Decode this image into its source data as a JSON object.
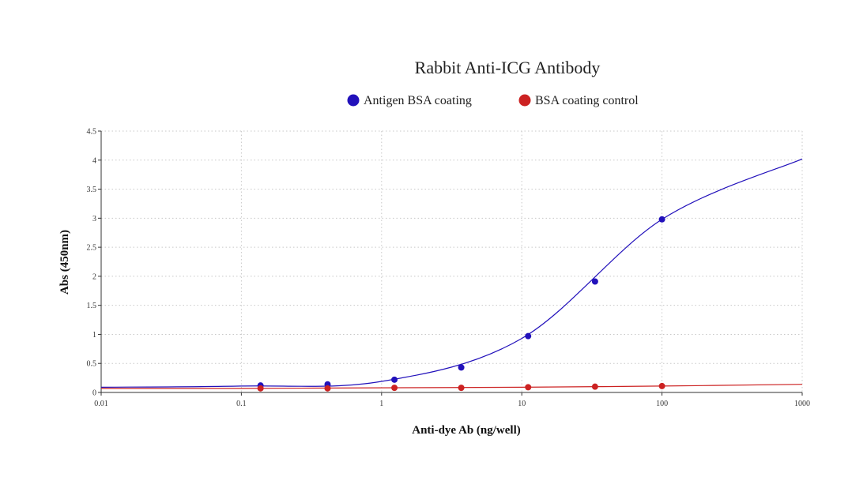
{
  "chart_data": {
    "type": "scatter",
    "title": "Rabbit Anti-ICG Antibody",
    "xlabel": "Anti-dye Ab (ng/well)",
    "ylabel": "Abs (450nm)",
    "x_scale": "log",
    "xlim": [
      0.01,
      1000
    ],
    "ylim": [
      0,
      4.5
    ],
    "x_ticks": [
      0.01,
      0.1,
      1,
      10,
      100,
      1000
    ],
    "x_tick_labels": [
      "0.01",
      "0.1",
      "1",
      "10",
      "100",
      "1000"
    ],
    "y_ticks": [
      0,
      0.5,
      1,
      1.5,
      2,
      2.5,
      3,
      3.5,
      4,
      4.5
    ],
    "y_tick_labels": [
      "0",
      "0.5",
      "1",
      "1.5",
      "2",
      "2.5",
      "3",
      "3.5",
      "4",
      "4.5"
    ],
    "grid": true,
    "legend_position": "top-center",
    "series": [
      {
        "name": "Antigen BSA coating",
        "color": "#2211bb",
        "x": [
          0.137,
          0.412,
          1.235,
          3.7,
          11.1,
          33.3,
          100
        ],
        "y": [
          0.12,
          0.14,
          0.22,
          0.43,
          0.97,
          1.91,
          2.98
        ],
        "fit_curve": [
          [
            0.01,
            0.09
          ],
          [
            0.1,
            0.11
          ],
          [
            1,
            0.19
          ],
          [
            10,
            0.93
          ],
          [
            100,
            2.98
          ],
          [
            1000,
            4.02
          ]
        ]
      },
      {
        "name": "BSA coating control",
        "color": "#cc2222",
        "x": [
          0.137,
          0.412,
          1.235,
          3.7,
          11.1,
          33.3,
          100
        ],
        "y": [
          0.07,
          0.07,
          0.08,
          0.08,
          0.09,
          0.1,
          0.11
        ],
        "fit_curve": [
          [
            0.01,
            0.07
          ],
          [
            0.1,
            0.07
          ],
          [
            1,
            0.08
          ],
          [
            10,
            0.09
          ],
          [
            100,
            0.11
          ],
          [
            1000,
            0.14
          ]
        ]
      }
    ]
  }
}
